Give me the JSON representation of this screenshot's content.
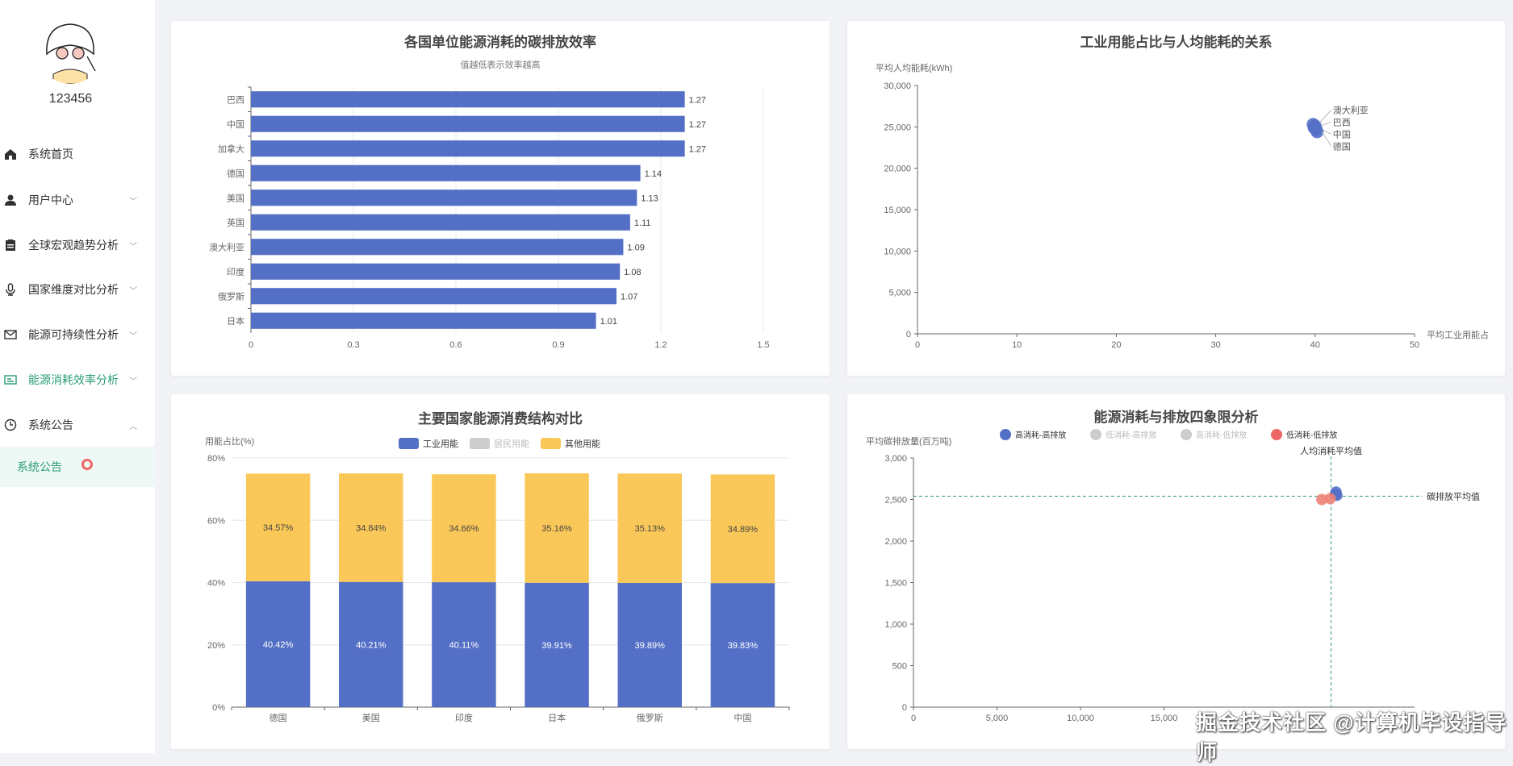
{
  "sidebar": {
    "username": "123456",
    "menu": [
      {
        "label": "系统首页",
        "icon": "home-icon",
        "chevron": false
      },
      {
        "label": "用户中心",
        "icon": "user-icon",
        "chevron": "down"
      },
      {
        "label": "全球宏观趋势分析",
        "icon": "clipboard-icon",
        "chevron": "down"
      },
      {
        "label": "国家维度对比分析",
        "icon": "microphone-icon",
        "chevron": "down"
      },
      {
        "label": "能源可持续性分析",
        "icon": "mail-icon",
        "chevron": "down"
      },
      {
        "label": "能源消耗效率分析",
        "icon": "card-icon",
        "chevron": "down",
        "active": true
      },
      {
        "label": "系统公告",
        "icon": "clock-icon",
        "chevron": "up"
      }
    ],
    "submenu": [
      {
        "label": "系统公告"
      }
    ]
  },
  "colors": {
    "accent": "#2a9d75",
    "blue": "#5470c6",
    "yellow": "#fac858",
    "red": "#ee6666",
    "grey": "#cccccc"
  },
  "watermark": "掘金技术社区 @计算机毕设指导师",
  "chart_data": [
    {
      "type": "bar",
      "orientation": "horizontal",
      "title": "各国单位能源消耗的碳排放效率",
      "subtitle": "值越低表示效率越高",
      "categories": [
        "巴西",
        "中国",
        "加拿大",
        "德国",
        "美国",
        "英国",
        "澳大利亚",
        "印度",
        "俄罗斯",
        "日本"
      ],
      "values": [
        1.27,
        1.27,
        1.27,
        1.14,
        1.13,
        1.11,
        1.09,
        1.08,
        1.07,
        1.01
      ],
      "xlim": [
        0,
        1.5
      ],
      "xticks": [
        "0",
        "0.3",
        "0.6",
        "0.9",
        "1.2",
        "1.5"
      ],
      "grid": true
    },
    {
      "type": "scatter",
      "title": "工业用能占比与人均能耗的关系",
      "ylabel": "平均人均能耗(kWh)",
      "xlabel": "平均工业用能占",
      "xlim": [
        0,
        50
      ],
      "ylim": [
        0,
        30000
      ],
      "xticks": [
        "0",
        "10",
        "20",
        "30",
        "40",
        "50"
      ],
      "yticks": [
        "0",
        "5,000",
        "10,000",
        "15,000",
        "20,000",
        "25,000",
        "30,000"
      ],
      "points": [
        {
          "x": 39.8,
          "y": 25300,
          "label": "澳大利亚"
        },
        {
          "x": 40.0,
          "y": 25100,
          "label": "巴西"
        },
        {
          "x": 40.1,
          "y": 24700,
          "label": "中国"
        },
        {
          "x": 40.2,
          "y": 24400,
          "label": "德国"
        },
        {
          "x": 39.9,
          "y": 24900,
          "label": ""
        }
      ]
    },
    {
      "type": "bar",
      "stacked": true,
      "title": "主要国家能源消费结构对比",
      "ylabel": "用能占比(%)",
      "ylim": [
        0,
        80
      ],
      "yticks": [
        "0%",
        "20%",
        "40%",
        "60%",
        "80%"
      ],
      "legend": [
        {
          "name": "工业用能",
          "color": "#5470c6",
          "enabled": true
        },
        {
          "name": "居民用能",
          "color": "#cccccc",
          "enabled": false
        },
        {
          "name": "其他用能",
          "color": "#fac858",
          "enabled": true
        }
      ],
      "legend_position": "top",
      "categories": [
        "德国",
        "美国",
        "印度",
        "日本",
        "俄罗斯",
        "中国"
      ],
      "series": [
        {
          "name": "工业用能",
          "values": [
            40.42,
            40.21,
            40.11,
            39.91,
            39.89,
            39.83
          ],
          "labels": [
            "40.42%",
            "40.21%",
            "40.11%",
            "39.91%",
            "39.89%",
            "39.83%"
          ]
        },
        {
          "name": "其他用能",
          "values": [
            34.57,
            34.84,
            34.66,
            35.16,
            35.13,
            34.89
          ],
          "labels": [
            "34.57%",
            "34.84%",
            "34.66%",
            "35.16%",
            "35.13%",
            "34.89%"
          ]
        }
      ],
      "grid": true
    },
    {
      "type": "scatter",
      "title": "能源消耗与排放四象限分析",
      "ylabel": "平均碳排放量(百万吨)",
      "xlim": [
        0,
        30000
      ],
      "ylim": [
        0,
        3000
      ],
      "xticks": [
        "0",
        "5,000",
        "10,000",
        "15,000"
      ],
      "yticks": [
        "0",
        "500",
        "1,000",
        "1,500",
        "2,000",
        "2,500",
        "3,000"
      ],
      "legend": [
        {
          "name": "高消耗-高排放",
          "color": "#5470c6",
          "enabled": true
        },
        {
          "name": "低消耗-高排放",
          "color": "#cccccc",
          "enabled": false
        },
        {
          "name": "高消耗-低排放",
          "color": "#cccccc",
          "enabled": false
        },
        {
          "name": "低消耗-低排放",
          "color": "#ee6666",
          "enabled": true
        }
      ],
      "series": [
        {
          "name": "高消耗-高排放",
          "points": [
            [
              25300,
              2590
            ],
            [
              25350,
              2550
            ],
            [
              25250,
              2560
            ]
          ]
        },
        {
          "name": "低消耗-低排放",
          "points": [
            [
              24450,
              2500
            ],
            [
              24950,
              2510
            ]
          ]
        }
      ],
      "mark_lines": [
        {
          "axis": "x",
          "value": 25000,
          "label": "人均消耗平均值"
        },
        {
          "axis": "y",
          "value": 2540,
          "label": "碳排放平均值"
        }
      ]
    }
  ]
}
